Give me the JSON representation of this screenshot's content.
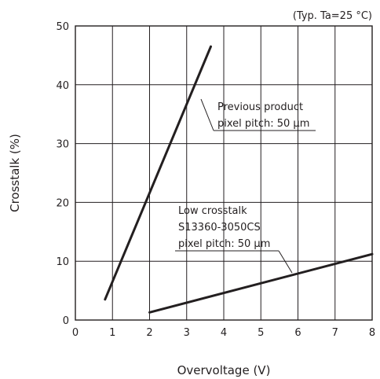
{
  "chart_data": {
    "type": "line",
    "title": "",
    "condition_note": "(Typ. Ta=25 °C)",
    "xlabel": "Overvoltage (V)",
    "ylabel": "Crosstalk (%)",
    "xlim": [
      0,
      8
    ],
    "ylim": [
      0,
      50
    ],
    "x_ticks": [
      "0",
      "1",
      "2",
      "3",
      "4",
      "5",
      "6",
      "7",
      "8"
    ],
    "y_ticks": [
      "0",
      "10",
      "20",
      "30",
      "40",
      "50"
    ],
    "grid": true,
    "series": [
      {
        "points": [
          [
            0.8,
            3.5
          ],
          [
            3.65,
            46.5
          ]
        ],
        "color": "#231f20",
        "annotation": [
          "Previous product",
          "pixel pitch: 50 µm"
        ]
      },
      {
        "points": [
          [
            2.0,
            1.3
          ],
          [
            8.0,
            11.2
          ]
        ],
        "color": "#231f20",
        "annotation": [
          "Low crosstalk",
          "S13360-3050CS",
          "pixel pitch: 50 µm"
        ]
      }
    ]
  }
}
